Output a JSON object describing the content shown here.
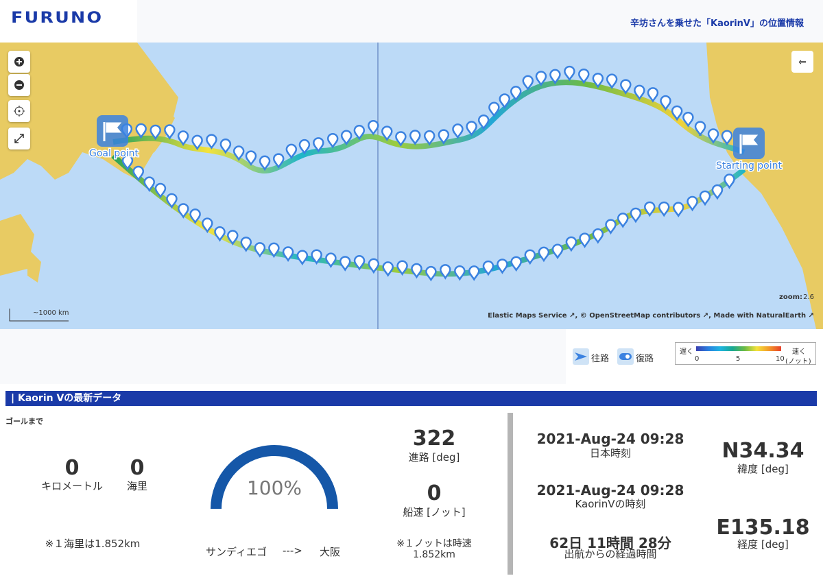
{
  "header": {
    "logo": "FURUNO",
    "title": "辛坊さんを乗せた「KaorinV」の位置情報"
  },
  "map": {
    "goal_label": "Goal point",
    "start_label": "Starting point",
    "zoom_label": "zoom:",
    "zoom": "2.6",
    "scale": "~1000 km",
    "attribution": [
      "Elastic Maps Service",
      ", © OpenStreetMap contributors",
      ", Made with NaturalEarth"
    ]
  },
  "legend": {
    "outbound": "往路",
    "return": "復路",
    "slow": "遅く",
    "fast": "速く",
    "ticks": [
      "0",
      "5",
      "10"
    ],
    "unit": "(ノット)"
  },
  "section": {
    "title": "Kaorin Vの最新データ"
  },
  "distance": {
    "heading": "ゴールまで",
    "km": "0",
    "km_label": "キロメートル",
    "nm": "0",
    "nm_label": "海里",
    "note": "※１海里は1.852km"
  },
  "progress": {
    "percent": "100%",
    "from": "サンディエゴ",
    "arrow": "--->",
    "to": "大阪"
  },
  "motion": {
    "course": "322",
    "course_label": "進路 [deg]",
    "speed": "0",
    "speed_label": "船速 [ノット]",
    "note": "※１ノットは時速1.852km"
  },
  "time": {
    "jst": "2021-Aug-24 09:28",
    "jst_label": "日本時刻",
    "ship": "2021-Aug-24 09:28",
    "ship_label": "KaorinVの時刻",
    "elapsed": "62日 11時間 28分",
    "elapsed_label": "出航からの経過時間"
  },
  "position": {
    "lat": "N34.34",
    "lat_label": "緯度 [deg]",
    "lon": "E135.18",
    "lon_label": "経度 [deg]"
  }
}
